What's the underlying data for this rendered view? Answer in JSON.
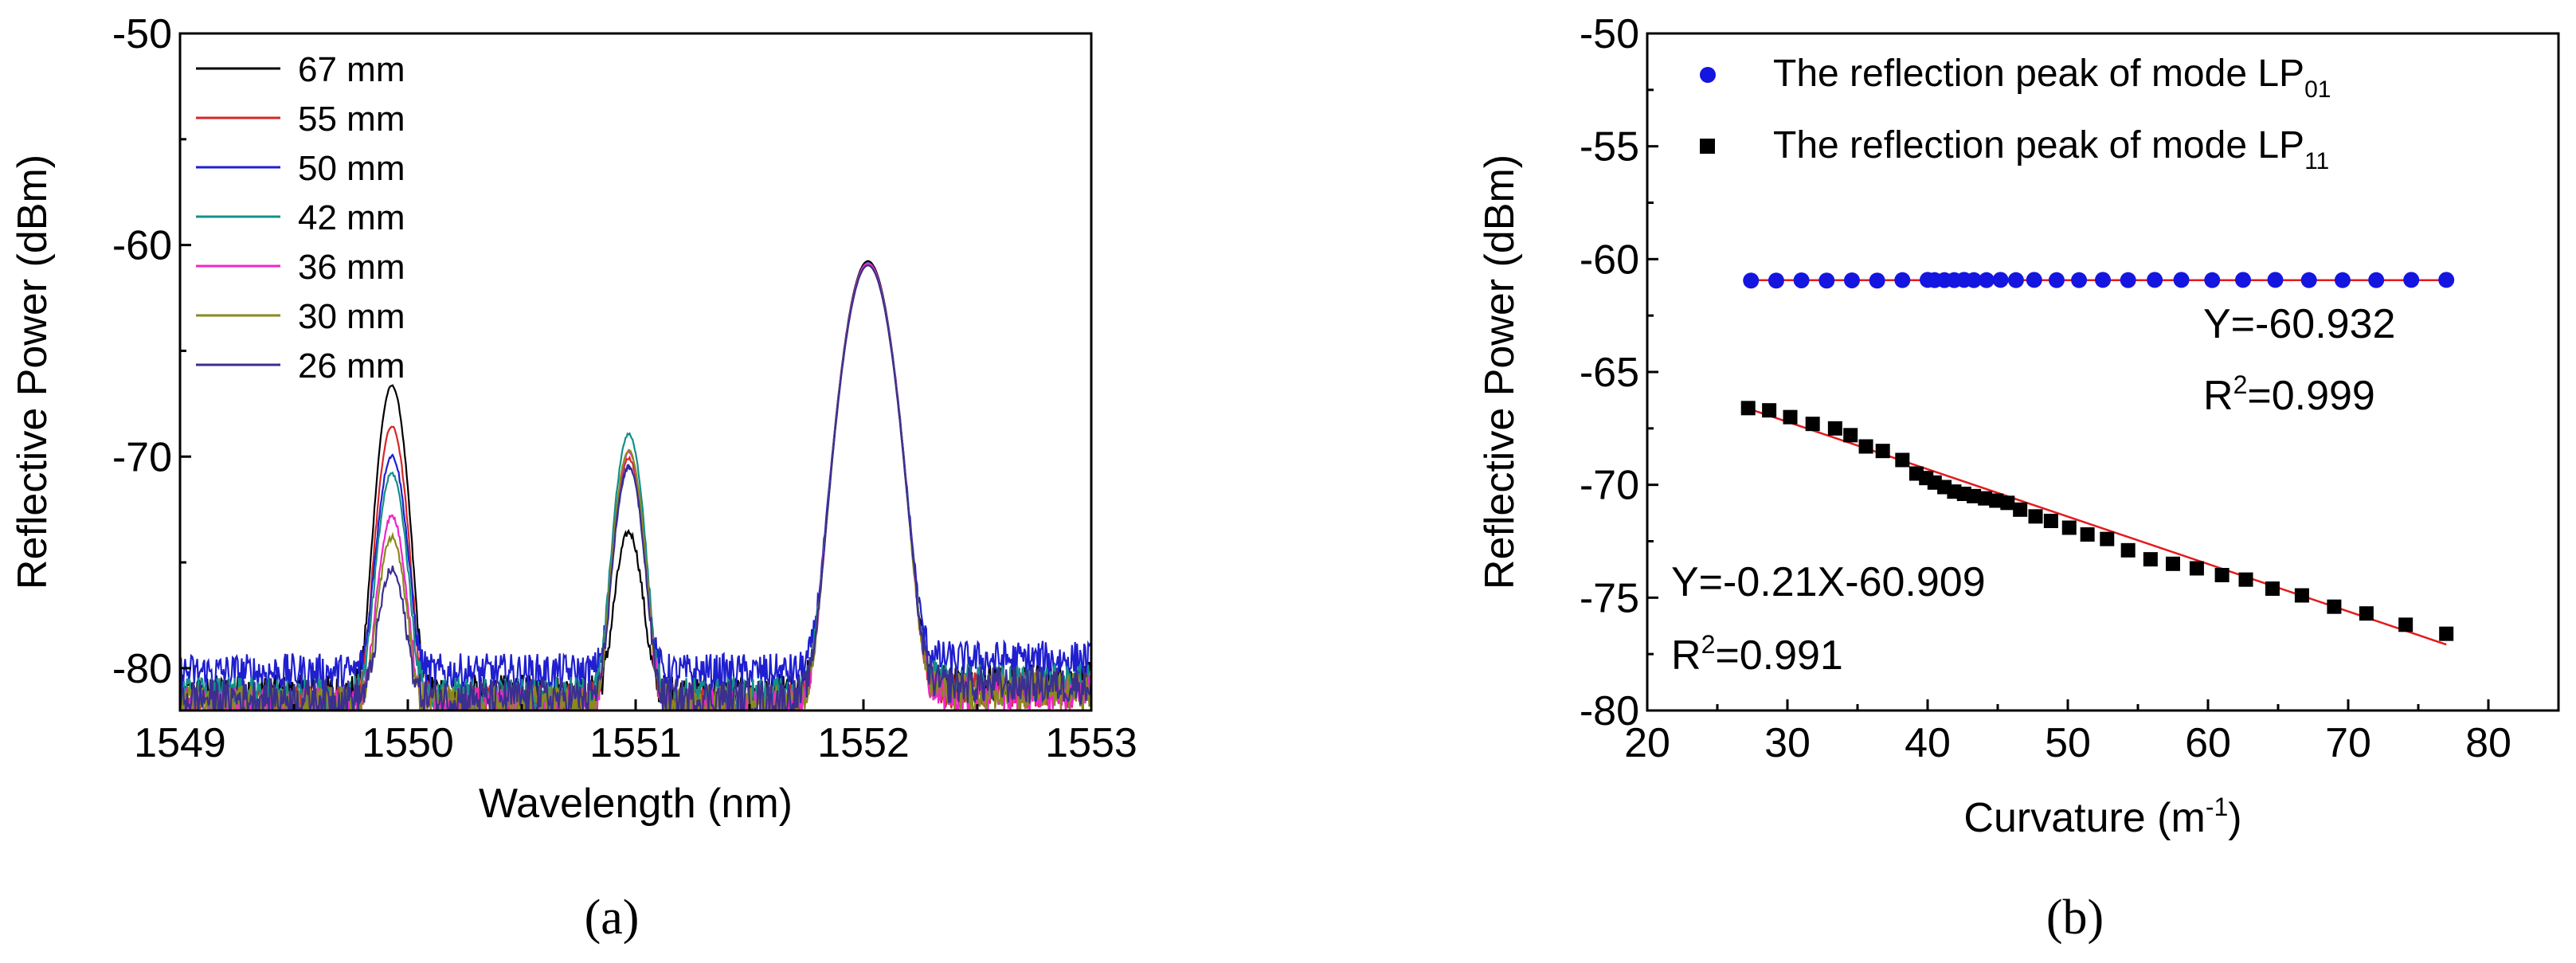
{
  "chart_data": [
    {
      "type": "line",
      "panel_label": "(a)",
      "xlabel": "Wavelength (nm)",
      "ylabel": "Reflective Power (dBm)",
      "xlim": [
        1549,
        1553
      ],
      "ylim": [
        -82,
        -50
      ],
      "xticks": [
        1549,
        1550,
        1551,
        1552,
        1553
      ],
      "yticks": [
        -80,
        -70,
        -60,
        -50
      ],
      "grid": false,
      "legend_position": "top-left",
      "noise_floor": -81.5,
      "series": [
        {
          "name": "67 mm",
          "color": "#000000",
          "peaks": [
            {
              "x": 1549.93,
              "y": -66.8
            },
            {
              "x": 1550.97,
              "y": -74.4
            },
            {
              "x": 1552.02,
              "y": -60.8
            }
          ],
          "noise_mean": -81.2
        },
        {
          "name": "55 mm",
          "color": "#d62728",
          "peaks": [
            {
              "x": 1549.93,
              "y": -68.8
            },
            {
              "x": 1550.97,
              "y": -70.4
            },
            {
              "x": 1552.02,
              "y": -60.9
            }
          ],
          "noise_mean": -81.6
        },
        {
          "name": "50 mm",
          "color": "#1f1fcf",
          "peaks": [
            {
              "x": 1549.93,
              "y": -70.4
            },
            {
              "x": 1550.97,
              "y": -71.0
            },
            {
              "x": 1552.02,
              "y": -60.9
            }
          ],
          "noise_mean": -80.2
        },
        {
          "name": "42 mm",
          "color": "#138f8a",
          "peaks": [
            {
              "x": 1549.93,
              "y": -71.2
            },
            {
              "x": 1550.97,
              "y": -69.2
            },
            {
              "x": 1552.02,
              "y": -60.9
            }
          ],
          "noise_mean": -81.3
        },
        {
          "name": "36 mm",
          "color": "#ef27c9",
          "peaks": [
            {
              "x": 1549.93,
              "y": -73.4
            },
            {
              "x": 1550.97,
              "y": -70.1
            },
            {
              "x": 1552.02,
              "y": -60.9
            }
          ],
          "noise_mean": -81.8
        },
        {
          "name": "30 mm",
          "color": "#8a8a1e",
          "peaks": [
            {
              "x": 1549.93,
              "y": -74.6
            },
            {
              "x": 1550.97,
              "y": -70.0
            },
            {
              "x": 1552.02,
              "y": -61.0
            }
          ],
          "noise_mean": -81.7
        },
        {
          "name": "26 mm",
          "color": "#3b2f8f",
          "peaks": [
            {
              "x": 1549.93,
              "y": -76.6
            },
            {
              "x": 1550.97,
              "y": -70.8
            },
            {
              "x": 1552.02,
              "y": -61.0
            }
          ],
          "noise_mean": -81.4
        }
      ]
    },
    {
      "type": "scatter",
      "panel_label": "(b)",
      "xlabel": "Curvature (m",
      "xlabel_sup": "-1",
      "xlabel_end": ")",
      "ylabel": "Reflective Power (dBm)",
      "xlim": [
        20,
        85
      ],
      "ylim": [
        -80,
        -50
      ],
      "xticks": [
        20,
        30,
        40,
        50,
        60,
        70,
        80
      ],
      "yticks": [
        -80,
        -75,
        -70,
        -65,
        -60,
        -55,
        -50
      ],
      "grid": false,
      "legend_position": "top",
      "series": [
        {
          "name": "The reflection peak of mode LP",
          "name_sub": "01",
          "marker": "circle",
          "color": "#1515e0",
          "x": [
            27.4,
            29.2,
            31.0,
            32.8,
            34.6,
            36.4,
            38.2,
            40.0,
            40.5,
            41.2,
            41.9,
            42.6,
            43.3,
            44.2,
            45.2,
            46.3,
            47.6,
            49.2,
            50.8,
            52.5,
            54.3,
            56.2,
            58.1,
            60.3,
            62.5,
            64.8,
            67.2,
            69.6,
            72.0,
            74.5,
            77.0
          ],
          "y": [
            -60.95,
            -60.95,
            -60.94,
            -60.95,
            -60.94,
            -60.95,
            -60.93,
            -60.92,
            -60.93,
            -60.93,
            -60.93,
            -60.92,
            -60.93,
            -60.93,
            -60.92,
            -60.93,
            -60.92,
            -60.93,
            -60.93,
            -60.92,
            -60.93,
            -60.92,
            -60.92,
            -60.93,
            -60.92,
            -60.92,
            -60.93,
            -60.93,
            -60.93,
            -60.92,
            -60.92
          ]
        },
        {
          "name": "The reflection peak of mode LP",
          "name_sub": "11",
          "marker": "square",
          "color": "#000000",
          "x": [
            27.2,
            28.7,
            30.2,
            31.8,
            33.4,
            34.5,
            35.6,
            36.8,
            38.2,
            39.2,
            39.9,
            40.5,
            41.2,
            41.9,
            42.6,
            43.3,
            44.1,
            44.9,
            45.7,
            46.6,
            47.7,
            48.8,
            50.1,
            51.4,
            52.8,
            54.3,
            55.9,
            57.5,
            59.2,
            61.0,
            62.7,
            64.6,
            66.7,
            69.0,
            71.3,
            74.1,
            77.0
          ],
          "y": [
            -66.6,
            -66.7,
            -67.0,
            -67.3,
            -67.5,
            -67.8,
            -68.3,
            -68.5,
            -68.9,
            -69.5,
            -69.7,
            -69.9,
            -70.1,
            -70.3,
            -70.4,
            -70.5,
            -70.6,
            -70.7,
            -70.8,
            -71.1,
            -71.4,
            -71.6,
            -71.9,
            -72.2,
            -72.4,
            -72.9,
            -73.3,
            -73.5,
            -73.7,
            -74.0,
            -74.2,
            -74.6,
            -74.9,
            -75.4,
            -75.7,
            -76.2,
            -76.6
          ]
        }
      ],
      "fits": [
        {
          "name": "fit LP01",
          "slope": 0,
          "intercept": -60.932,
          "x_range": [
            27.4,
            77.0
          ],
          "color": "#e41a1c"
        },
        {
          "name": "fit LP11",
          "slope": -0.21,
          "intercept": -60.909,
          "x_range": [
            27.2,
            77.0
          ],
          "color": "#e41a1c"
        }
      ],
      "annotations": {
        "fit1_eq": "Y=-60.932",
        "fit1_r2_base": "R",
        "fit1_r2_sup": "2",
        "fit1_r2_val": "=0.999",
        "fit2_eq": "Y=-0.21X-60.909",
        "fit2_r2_base": "R",
        "fit2_r2_sup": "2",
        "fit2_r2_val": "=0.991"
      }
    }
  ]
}
